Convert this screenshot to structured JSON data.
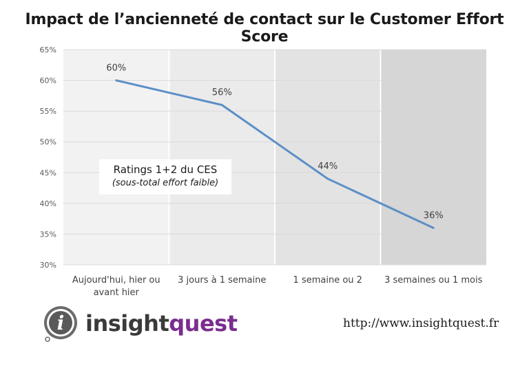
{
  "chart_data": {
    "type": "line",
    "title": "Impact de l’ancienneté de contact sur le Customer Effort Score",
    "categories": [
      "Aujourd'hui, hier ou avant hier",
      "3 jours à 1 semaine",
      "1 semaine ou 2",
      "3 semaines ou 1 mois"
    ],
    "category_lines": [
      [
        "Aujourd'hui, hier ou",
        "avant hier"
      ],
      [
        "3 jours à 1 semaine"
      ],
      [
        "1 semaine ou 2"
      ],
      [
        "3 semaines ou 1 mois"
      ]
    ],
    "series": [
      {
        "values": [
          60,
          56,
          44,
          36
        ],
        "data_labels": [
          "60%",
          "56%",
          "44%",
          "36%"
        ],
        "color": "#5b8fc6"
      }
    ],
    "ylim": [
      30,
      65
    ],
    "yticks": [
      30,
      35,
      40,
      45,
      50,
      55,
      60,
      65
    ],
    "ytick_labels": [
      "30%",
      "35%",
      "40%",
      "45%",
      "50%",
      "55%",
      "60%",
      "65%"
    ],
    "band_colors": [
      "#f2f2f2",
      "#ebebeb",
      "#e3e3e3",
      "#d6d6d6"
    ],
    "annotation": {
      "line1": "Ratings 1+2 du CES",
      "line2": "(sous-total effort faible)"
    },
    "xlabel": "",
    "ylabel": ""
  },
  "branding": {
    "logo_part1": "insight",
    "logo_part2": "quest",
    "logo_colors": [
      "#3a3a3a",
      "#7a2e8e"
    ],
    "url": "http://www.insightquest.fr"
  }
}
